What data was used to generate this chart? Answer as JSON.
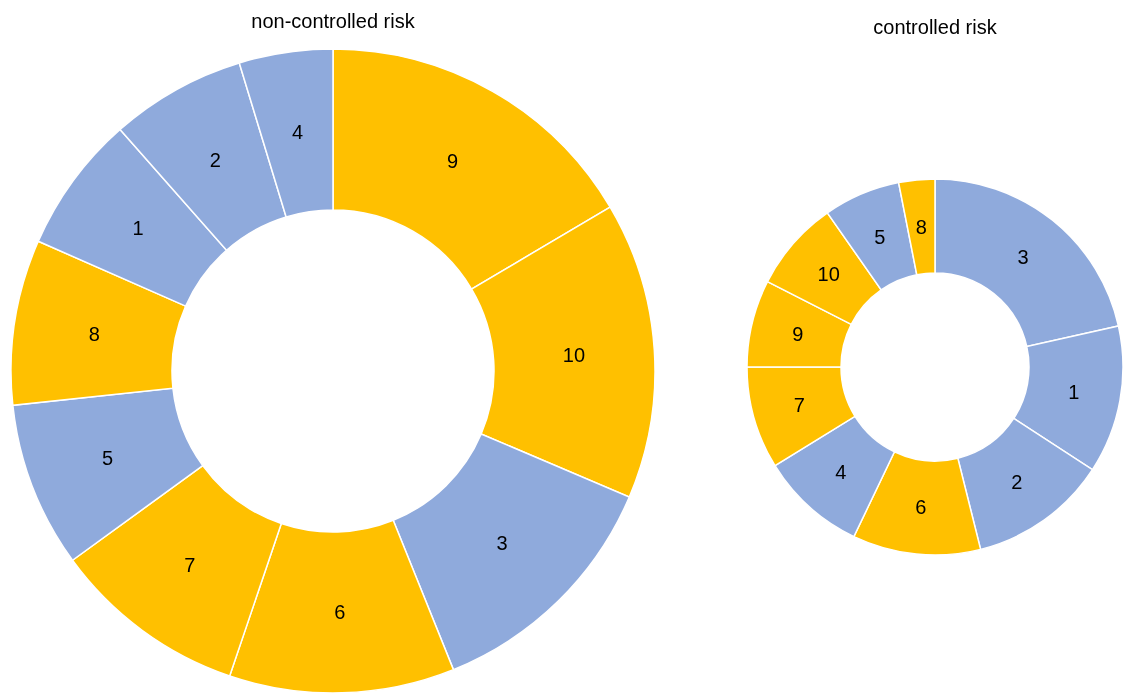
{
  "chart_data": [
    {
      "type": "donut",
      "title": "non-controlled risk",
      "categories": [
        "9",
        "10",
        "3",
        "6",
        "7",
        "5",
        "8",
        "1",
        "2",
        "4"
      ],
      "values": [
        16.5,
        14.9,
        12.5,
        11.3,
        9.8,
        8.3,
        8.3,
        6.9,
        6.8,
        4.7
      ],
      "colors": [
        "#ffc000",
        "#ffc000",
        "#8faadc",
        "#ffc000",
        "#ffc000",
        "#8faadc",
        "#ffc000",
        "#8faadc",
        "#8faadc",
        "#8faadc"
      ]
    },
    {
      "type": "donut",
      "title": "controlled risk",
      "categories": [
        "3",
        "1",
        "2",
        "6",
        "4",
        "7",
        "9",
        "10",
        "5",
        "8"
      ],
      "values": [
        21.5,
        12.7,
        11.9,
        11.0,
        9.1,
        8.8,
        7.5,
        7.8,
        6.6,
        3.1
      ],
      "colors": [
        "#8faadc",
        "#8faadc",
        "#8faadc",
        "#ffc000",
        "#8faadc",
        "#ffc000",
        "#ffc000",
        "#ffc000",
        "#8faadc",
        "#ffc000"
      ]
    }
  ]
}
